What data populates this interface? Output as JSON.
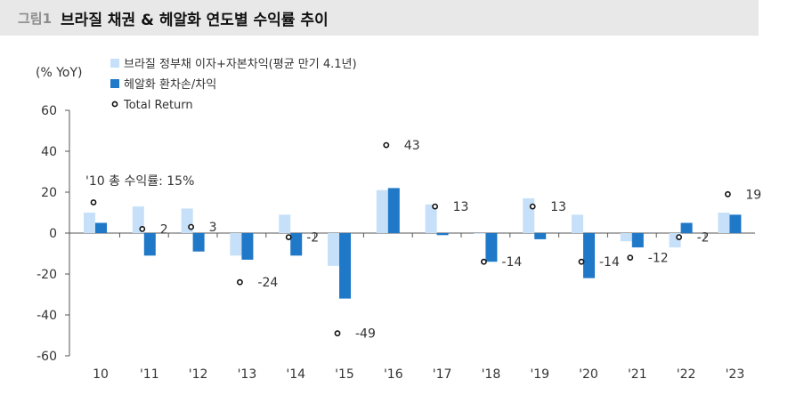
{
  "header": {
    "figure_label": "그림1",
    "title": "브라질 채권 & 헤알화 연도별 수익률 추이"
  },
  "chart_data": {
    "type": "bar",
    "ylabel": "(% YoY)",
    "ylim": [
      -60,
      60
    ],
    "yticks": [
      60,
      40,
      20,
      0,
      -20,
      -40,
      -60
    ],
    "categories": [
      "10",
      "'11",
      "'12",
      "'13",
      "'14",
      "'15",
      "'16",
      "'17",
      "'18",
      "'19",
      "'20",
      "'21",
      "'22",
      "'23"
    ],
    "series": [
      {
        "name": "브라질 정부채 이자+자본차익(평균  만기 4.1년)",
        "kind": "bar",
        "color": "#c5e0f8",
        "values": [
          10,
          13,
          12,
          -11,
          9,
          -16,
          21,
          14,
          0,
          17,
          9,
          -4,
          -7,
          10
        ]
      },
      {
        "name": "헤알화 환차손/차익",
        "kind": "bar",
        "color": "#1f78c8",
        "values": [
          5,
          -11,
          -9,
          -13,
          -11,
          -32,
          22,
          -1,
          -14,
          -3,
          -22,
          -7,
          5,
          9
        ]
      },
      {
        "name": "Total Return",
        "kind": "point",
        "color": "#111111",
        "values": [
          15,
          2,
          3,
          -24,
          -2,
          -49,
          43,
          13,
          -14,
          13,
          -14,
          -12,
          -2,
          19
        ]
      }
    ],
    "data_labels": [
      "",
      "2",
      "3",
      "-24",
      "-2",
      "-49",
      "43",
      "13",
      "-14",
      "13",
      "-14",
      "-12",
      "-2",
      "19"
    ],
    "annotation": "'10 총 수익률: 15%",
    "legend_position": "top-center",
    "grid": false
  }
}
